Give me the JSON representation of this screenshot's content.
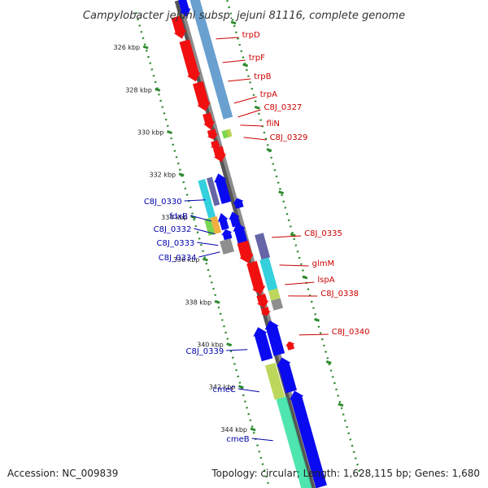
{
  "title": "Campylobacter jejuni subsp. jejuni 81116, complete genome",
  "footer": {
    "accession": "Accession: NC_009839",
    "stats": "Topology: circular; Length: 1,628,115 bp; Genes: 1,680"
  },
  "colors": {
    "background": "#ffffff",
    "backbone": "#8c8c8c",
    "tick_dots": "#2e8b2e",
    "forward_label": "#cc0000",
    "reverse_label": "#0000aa",
    "gene_blue": "#0a0af0",
    "gene_red": "#f01010",
    "gene_lightblue": "#4f8fc8",
    "gene_cyan": "#10c8d8",
    "gene_green": "#60d030",
    "gene_yellowgreen": "#b0d040",
    "gene_orange": "#f0a020",
    "gene_purple": "#4a4a98",
    "gene_gray": "#7a7a7a",
    "gene_seagreen": "#30e0a0"
  },
  "map": {
    "position_unit": "kbp",
    "ticks": [
      {
        "label": "326 kbp"
      },
      {
        "label": "328 kbp"
      },
      {
        "label": "330 kbp"
      },
      {
        "label": "332 kbp"
      },
      {
        "label": "334 kbp"
      },
      {
        "label": "336 kbp"
      },
      {
        "label": "338 kbp"
      },
      {
        "label": "340 kbp"
      },
      {
        "label": "342 kbp"
      },
      {
        "label": "344 kbp"
      }
    ],
    "forward_genes": [
      {
        "name": "trpD",
        "color": "gene_red"
      },
      {
        "name": "trpF",
        "color": "gene_red"
      },
      {
        "name": "trpB",
        "color": "gene_red"
      },
      {
        "name": "trpA",
        "color": "gene_red"
      },
      {
        "name": "C8J_0327",
        "color": "gene_red"
      },
      {
        "name": "fliN",
        "color": "gene_green"
      },
      {
        "name": "C8J_0329",
        "color": "gene_red"
      },
      {
        "name": "C8J_0335",
        "color": "gene_purple"
      },
      {
        "name": "glmM",
        "color": "gene_cyan"
      },
      {
        "name": "lspA",
        "color": "gene_yellowgreen"
      },
      {
        "name": "C8J_0338",
        "color": "gene_gray"
      },
      {
        "name": "C8J_0340",
        "color": "gene_red"
      }
    ],
    "reverse_genes": [
      {
        "name": "C8J_0330",
        "color": "gene_cyan"
      },
      {
        "name": "fdxB",
        "color": "gene_orange"
      },
      {
        "name": "C8J_0332",
        "color": "gene_blue"
      },
      {
        "name": "C8J_0333",
        "color": "gene_blue"
      },
      {
        "name": "C8J_0334",
        "color": "gene_gray"
      },
      {
        "name": "C8J_0339",
        "color": "gene_blue"
      },
      {
        "name": "cmeC",
        "color": "gene_yellowgreen"
      },
      {
        "name": "cmeB",
        "color": "gene_seagreen"
      }
    ]
  }
}
